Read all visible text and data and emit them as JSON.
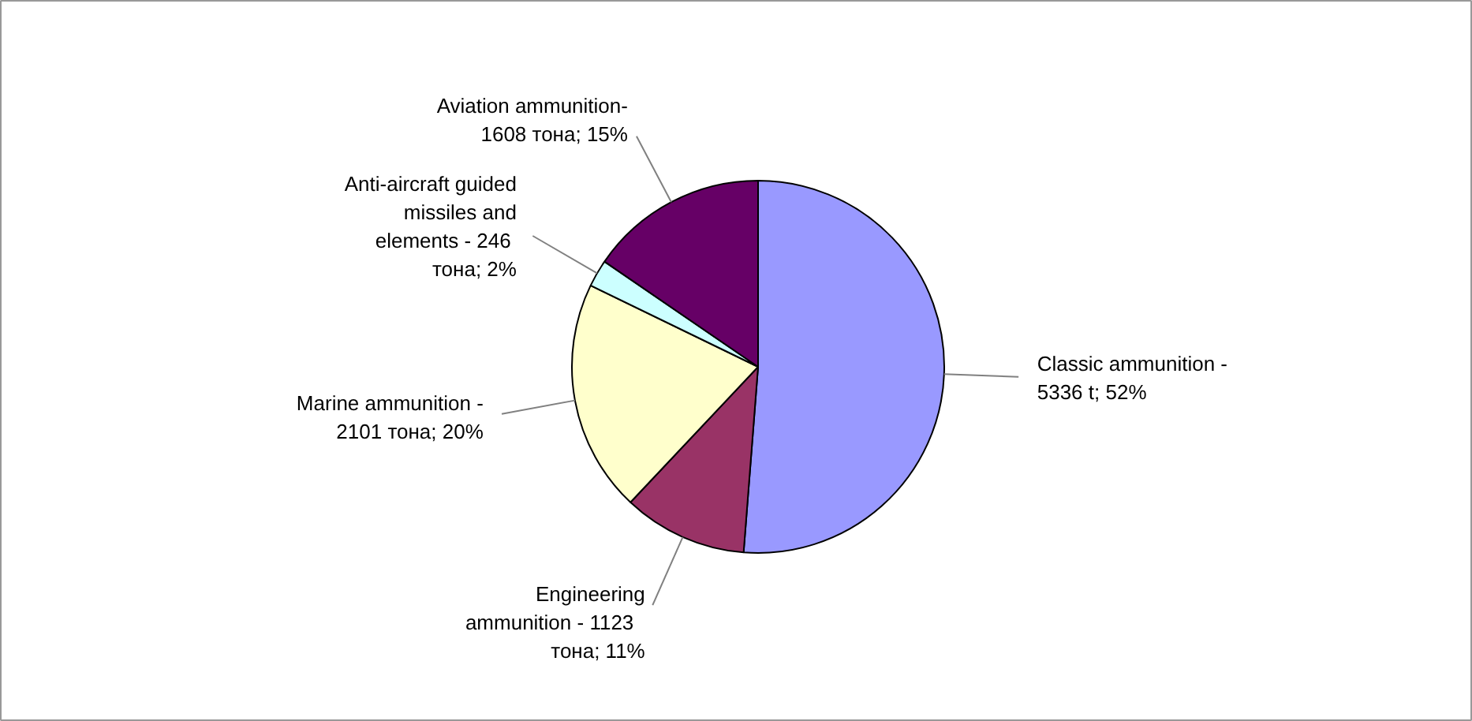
{
  "chart_data": {
    "type": "pie",
    "categories": [
      "Classic ammunition -\n5336 t; 52%",
      "Engineering\nammunition  -  1123\nтона; 11%",
      "Marine ammunition -\n2101 тона; 20%",
      "Anti-aircraft guided\nmissiles and\nelements -  246\nтона; 2%",
      "Aviation ammunition-\n1608 тона; 15%"
    ],
    "values": [
      5336,
      1123,
      2101,
      246,
      1608
    ],
    "colors": [
      "#9999ff",
      "#993366",
      "#ffffcc",
      "#ccffff",
      "#660066"
    ]
  }
}
